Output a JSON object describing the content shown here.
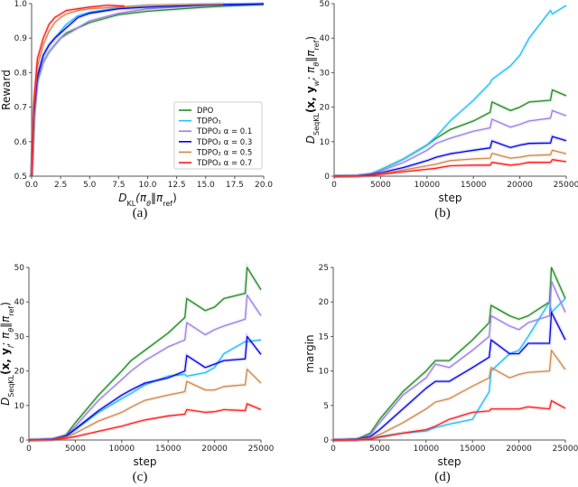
{
  "series_styles": [
    {
      "name": "DPO",
      "color": "#228b22"
    },
    {
      "name": "TDPO₁",
      "color": "#1ebeff"
    },
    {
      "name": "TDPO₂  α = 0.1",
      "color": "#9b7fe6"
    },
    {
      "name": "TDPO₂  α = 0.3",
      "color": "#0000ee"
    },
    {
      "name": "TDPO₂  α = 0.5",
      "color": "#d2874a"
    },
    {
      "name": "TDPO₂  α = 0.7",
      "color": "#ff1a1a"
    }
  ],
  "chart_data": [
    {
      "type": "line",
      "caption": "(a)",
      "legend": "lower-right",
      "ylabel": [
        {
          "t": "Reward"
        }
      ],
      "xlabel": [
        {
          "t": "D",
          "i": true
        },
        {
          "t": "KL",
          "sub": true
        },
        {
          "t": "(π",
          "i": true
        },
        {
          "t": "θ",
          "sub": true,
          "i": true
        },
        {
          "t": "‖π",
          "i": true
        },
        {
          "t": "ref",
          "sub": true
        },
        {
          "t": ")"
        }
      ],
      "xlim": [
        0,
        20
      ],
      "ylim": [
        0.5,
        1.0
      ],
      "xticks": [
        "0.0",
        "2.5",
        "5.0",
        "7.5",
        "10.0",
        "12.5",
        "15.0",
        "17.5",
        "20.0"
      ],
      "yticks": [
        "0.5",
        "0.6",
        "0.7",
        "0.8",
        "0.9",
        "1.0"
      ],
      "series": [
        {
          "name": "DPO",
          "x": [
            0,
            0.2,
            0.5,
            1,
            1.5,
            2,
            2.5,
            3,
            4,
            5,
            7.5,
            10,
            15,
            20
          ],
          "y": [
            0.5,
            0.68,
            0.78,
            0.83,
            0.86,
            0.88,
            0.9,
            0.915,
            0.93,
            0.945,
            0.968,
            0.978,
            0.99,
            0.998
          ]
        },
        {
          "name": "TDPO₁",
          "x": [
            0,
            0.2,
            0.5,
            1,
            1.5,
            2,
            2.5,
            3,
            4,
            5,
            7.5,
            10,
            15,
            20
          ],
          "y": [
            0.5,
            0.68,
            0.79,
            0.85,
            0.88,
            0.9,
            0.92,
            0.94,
            0.965,
            0.975,
            0.988,
            0.995,
            0.998,
            0.999
          ]
        },
        {
          "name": "TDPO₂  α = 0.1",
          "x": [
            0,
            0.2,
            0.5,
            1,
            1.5,
            2,
            2.5,
            3,
            4,
            5,
            7.5,
            10,
            15,
            20
          ],
          "y": [
            0.5,
            0.67,
            0.77,
            0.83,
            0.86,
            0.88,
            0.9,
            0.91,
            0.93,
            0.95,
            0.972,
            0.985,
            0.995,
            0.999
          ]
        },
        {
          "name": "TDPO₂  α = 0.3",
          "x": [
            0,
            0.2,
            0.5,
            1,
            1.5,
            2,
            2.5,
            3,
            4,
            5,
            7.5,
            10,
            15,
            20
          ],
          "y": [
            0.5,
            0.68,
            0.79,
            0.85,
            0.88,
            0.9,
            0.915,
            0.93,
            0.96,
            0.972,
            0.985,
            0.99,
            0.996,
            0.999
          ]
        },
        {
          "name": "TDPO₂  α = 0.5",
          "x": [
            0,
            0.2,
            0.5,
            1,
            1.5,
            2,
            2.5,
            3,
            4,
            5,
            7.5,
            10,
            16.5
          ],
          "y": [
            0.5,
            0.7,
            0.82,
            0.88,
            0.92,
            0.945,
            0.96,
            0.97,
            0.98,
            0.985,
            0.99,
            0.995,
            0.999
          ]
        },
        {
          "name": "TDPO₂  α = 0.7",
          "x": [
            0,
            0.2,
            0.5,
            1,
            1.5,
            2,
            2.5,
            3,
            4,
            5,
            6.5,
            8
          ],
          "y": [
            0.5,
            0.72,
            0.84,
            0.9,
            0.94,
            0.96,
            0.97,
            0.98,
            0.985,
            0.99,
            0.995,
            0.993
          ]
        }
      ]
    },
    {
      "type": "line",
      "caption": "(b)",
      "ylabel": [
        {
          "t": "D",
          "i": true
        },
        {
          "t": "SeqKL",
          "sub": true
        },
        {
          "t": "(x, y",
          "b": true
        },
        {
          "t": "w",
          "sub": true,
          "i": true
        },
        {
          "t": "; π",
          "i": true
        },
        {
          "t": "θ",
          "sub": true,
          "i": true
        },
        {
          "t": "‖π",
          "i": true
        },
        {
          "t": "ref",
          "sub": true
        },
        {
          "t": ")"
        }
      ],
      "xlabel": [
        {
          "t": "step"
        }
      ],
      "xlim": [
        0,
        25000
      ],
      "ylim": [
        0,
        50
      ],
      "xticks": [
        "0",
        "5000",
        "10000",
        "15000",
        "20000",
        "25000"
      ],
      "yticks": [
        "0",
        "10",
        "20",
        "30",
        "40",
        "50"
      ],
      "x": [
        0,
        2500,
        4000,
        5000,
        7500,
        10000,
        11000,
        12500,
        15000,
        16800,
        17000,
        19000,
        20000,
        21000,
        23300,
        23500,
        25000
      ],
      "series": [
        {
          "name": "DPO",
          "y": [
            0,
            0.1,
            0.7,
            1.8,
            5,
            9,
            11,
            13.5,
            16,
            18.5,
            21.5,
            19,
            20,
            21.5,
            22,
            25,
            23.3
          ]
        },
        {
          "name": "TDPO₁",
          "y": [
            0,
            0.1,
            0.7,
            1.8,
            5,
            9,
            11.5,
            16,
            22,
            27,
            28,
            32,
            35,
            40,
            48,
            47,
            49.5
          ]
        },
        {
          "name": "TDPO₂  α = 0.1",
          "y": [
            0,
            0.1,
            0.6,
            1.5,
            4,
            7.5,
            9.5,
            11,
            13,
            14,
            16.5,
            14.2,
            15,
            16,
            16.8,
            19,
            17.5
          ]
        },
        {
          "name": "TDPO₂  α = 0.3",
          "y": [
            0,
            0.1,
            0.5,
            1,
            2.5,
            4.5,
            5.5,
            6.5,
            7.5,
            8.2,
            10.2,
            8.3,
            9,
            9.5,
            9.6,
            11.5,
            10.3
          ]
        },
        {
          "name": "TDPO₂  α = 0.5",
          "y": [
            0,
            0.05,
            0.3,
            0.7,
            1.8,
            3,
            3.5,
            4.5,
            5,
            5.2,
            6.6,
            5.2,
            5.5,
            6,
            6.2,
            7.5,
            6.5
          ]
        },
        {
          "name": "TDPO₂  α = 0.7",
          "y": [
            0,
            0.05,
            0.2,
            0.5,
            1.3,
            2,
            2.3,
            3,
            3.2,
            3.2,
            4,
            3.2,
            3.5,
            4,
            4,
            4.8,
            4.2
          ]
        }
      ]
    },
    {
      "type": "line",
      "caption": "(c)",
      "ylabel": [
        {
          "t": "D",
          "i": true
        },
        {
          "t": "SeqKL",
          "sub": true
        },
        {
          "t": "(x, y",
          "b": true
        },
        {
          "t": "l",
          "sub": true,
          "i": true
        },
        {
          "t": "; π",
          "i": true
        },
        {
          "t": "θ",
          "sub": true,
          "i": true
        },
        {
          "t": "‖π",
          "i": true
        },
        {
          "t": "ref",
          "sub": true
        },
        {
          "t": ")"
        }
      ],
      "xlabel": [
        {
          "t": "step"
        }
      ],
      "xlim": [
        0,
        25000
      ],
      "ylim": [
        0,
        50
      ],
      "xticks": [
        "0",
        "5000",
        "10000",
        "15000",
        "20000",
        "25000"
      ],
      "yticks": [
        "0",
        "10",
        "20",
        "30",
        "40",
        "50"
      ],
      "x": [
        0,
        2500,
        4000,
        5000,
        7500,
        10000,
        11000,
        12500,
        15000,
        16800,
        17000,
        19000,
        20000,
        21000,
        23300,
        23500,
        25000
      ],
      "series": [
        {
          "name": "DPO",
          "y": [
            0,
            0.2,
            1.5,
            5,
            13,
            20,
            23,
            26,
            31,
            35.5,
            41,
            37.5,
            38.5,
            41,
            42.5,
            50,
            43.5
          ]
        },
        {
          "name": "TDPO₁",
          "y": [
            0,
            0.2,
            1,
            3,
            8,
            12,
            13.5,
            16,
            18.5,
            19,
            18.5,
            19.5,
            21,
            25,
            28.5,
            28.5,
            29
          ]
        },
        {
          "name": "TDPO₂  α = 0.1",
          "y": [
            0,
            0.2,
            1.3,
            4,
            11.5,
            17.5,
            20,
            23,
            27,
            29,
            34,
            30.5,
            32,
            33,
            35,
            42,
            36
          ]
        },
        {
          "name": "TDPO₂  α = 0.3",
          "y": [
            0,
            0.2,
            1.1,
            3.2,
            8.5,
            13,
            14.5,
            16.5,
            18,
            20,
            24.5,
            21,
            22,
            23,
            23.5,
            30,
            24.8
          ]
        },
        {
          "name": "TDPO₂  α = 0.5",
          "y": [
            0,
            0.1,
            0.8,
            2,
            5.5,
            8,
            9.5,
            11.5,
            13,
            14,
            17,
            14.5,
            14.5,
            15.5,
            16,
            20.5,
            16.5
          ]
        },
        {
          "name": "TDPO₂  α = 0.7",
          "y": [
            0,
            0.1,
            0.5,
            1,
            2.5,
            4,
            4.8,
            5.8,
            7,
            7.5,
            8.8,
            8,
            8.2,
            8.8,
            8.5,
            10.5,
            8.8
          ]
        }
      ]
    },
    {
      "type": "line",
      "caption": "(d)",
      "ylabel": [
        {
          "t": "margin"
        }
      ],
      "xlabel": [
        {
          "t": "step"
        }
      ],
      "xlim": [
        0,
        25000
      ],
      "ylim": [
        0,
        25
      ],
      "xticks": [
        "0",
        "5000",
        "10000",
        "15000",
        "20000",
        "25000"
      ],
      "yticks": [
        "0",
        "5",
        "10",
        "15",
        "20",
        "25"
      ],
      "x": [
        0,
        2500,
        4000,
        5000,
        7500,
        10000,
        11000,
        12500,
        15000,
        16800,
        17000,
        19000,
        20000,
        21000,
        23300,
        23500,
        25000
      ],
      "series": [
        {
          "name": "DPO",
          "y": [
            0,
            0.1,
            1,
            3,
            7,
            10,
            11.5,
            11.5,
            14.5,
            17,
            19.5,
            18,
            17.5,
            18,
            20,
            25,
            20.5
          ]
        },
        {
          "name": "TDPO₁",
          "y": [
            0,
            0,
            0.2,
            0.5,
            1,
            1.3,
            1.8,
            2.3,
            3,
            7,
            10,
            12.5,
            13,
            15,
            20,
            18.5,
            20.5
          ]
        },
        {
          "name": "TDPO₂  α = 0.1",
          "y": [
            0,
            0.1,
            0.8,
            2.5,
            6.5,
            9,
            11,
            10.5,
            13,
            15,
            18,
            16.5,
            16,
            17,
            18,
            23,
            18.5
          ]
        },
        {
          "name": "TDPO₂  α = 0.3",
          "y": [
            0,
            0.1,
            0.5,
            1.5,
            4.5,
            7.5,
            8.5,
            8.5,
            10.5,
            12,
            14.5,
            12.5,
            12.5,
            14,
            14,
            18.5,
            14.5
          ]
        },
        {
          "name": "TDPO₂  α = 0.5",
          "y": [
            0,
            0.05,
            0.3,
            0.8,
            2.5,
            4.5,
            5.5,
            6,
            7.8,
            9,
            10.5,
            9,
            9.5,
            9.8,
            10,
            13,
            10.2
          ]
        },
        {
          "name": "TDPO₂  α = 0.7",
          "y": [
            0,
            0,
            0.1,
            0.4,
            1,
            1.5,
            2,
            3,
            4,
            4.2,
            4.5,
            4.5,
            4.5,
            4.8,
            4.5,
            5.7,
            4.6
          ]
        }
      ]
    }
  ]
}
